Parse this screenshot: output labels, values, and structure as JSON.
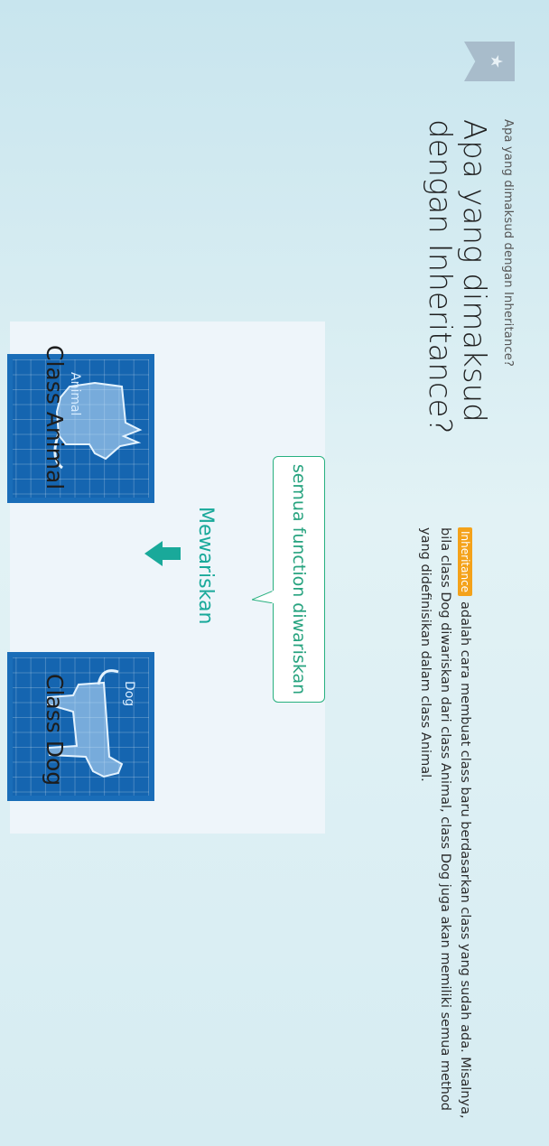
{
  "breadcrumb": "Apa yang dimaksud dengan Inheritance?",
  "title": "Apa yang dimaksud dengan Inheritance?",
  "bookmark_icon": "star-icon",
  "description": {
    "tag": "Inheritance",
    "text": "adalah cara membuat class baru berdasarkan class yang sudah ada. Misalnya, bila class Dog diwariskan dari class Animal, class Dog juga akan memiliki semua method yang didefinisikan dalam class Animal."
  },
  "diagram": {
    "bubble_text": "semua function diwariskan",
    "inherit_label": "Mewariskan",
    "parent_card_label": "Animal",
    "child_card_label": "Dog",
    "parent_class_label": "Class Animal",
    "child_class_label": "Class Dog",
    "accent_color": "#19a99a",
    "card_color": "#1565b0"
  }
}
